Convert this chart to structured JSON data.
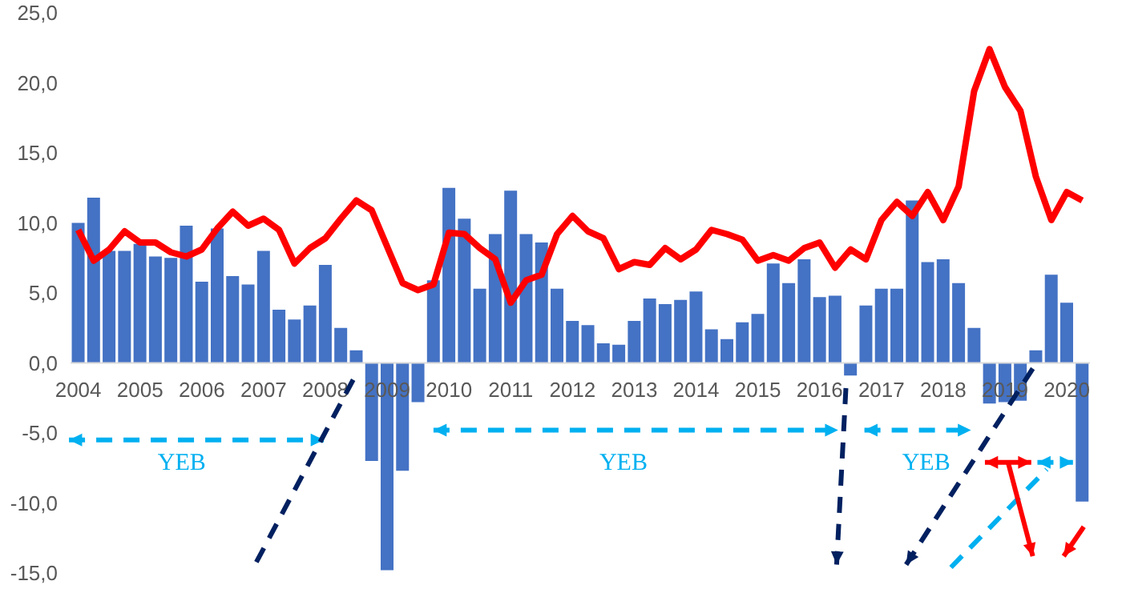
{
  "chart_data": {
    "type": "bar",
    "categories": [
      "2004",
      null,
      null,
      null,
      "2005",
      null,
      null,
      null,
      "2006",
      null,
      null,
      null,
      "2007",
      null,
      null,
      null,
      "2008",
      null,
      null,
      null,
      "2009",
      null,
      null,
      null,
      "2010",
      null,
      null,
      null,
      "2011",
      null,
      null,
      null,
      "2012",
      null,
      null,
      null,
      "2013",
      null,
      null,
      null,
      "2014",
      null,
      null,
      null,
      "2015",
      null,
      null,
      null,
      "2016",
      null,
      null,
      null,
      "2017",
      null,
      null,
      null,
      "2018",
      null,
      null,
      null,
      "2019",
      null,
      null,
      null,
      "2020",
      null
    ],
    "series": [
      {
        "color": "#4472c4",
        "values": [
          10.0,
          11.8,
          8.0,
          8.0,
          8.5,
          7.6,
          7.5,
          9.8,
          5.8,
          9.6,
          6.2,
          5.6,
          8.0,
          3.8,
          3.1,
          4.1,
          7.0,
          2.5,
          0.9,
          -7.0,
          -14.8,
          -7.7,
          -2.8,
          5.9,
          12.5,
          10.3,
          5.3,
          9.2,
          12.3,
          9.2,
          8.6,
          5.3,
          3.0,
          2.7,
          1.4,
          1.3,
          3.0,
          4.6,
          4.2,
          4.5,
          5.1,
          2.4,
          1.7,
          2.9,
          3.5,
          7.1,
          5.7,
          7.4,
          4.7,
          4.8,
          -0.9,
          4.1,
          5.3,
          5.3,
          11.6,
          7.2,
          7.4,
          5.7,
          2.5,
          -2.9,
          -2.8,
          -2.7,
          0.9,
          6.3,
          4.3,
          -9.9
        ]
      },
      {
        "type": "line",
        "color": "#ff0000",
        "values": [
          9.5,
          7.3,
          8.1,
          9.4,
          8.6,
          8.6,
          7.9,
          7.6,
          8.1,
          9.6,
          10.8,
          9.8,
          10.3,
          9.5,
          7.1,
          8.2,
          8.9,
          10.3,
          11.6,
          10.9,
          8.3,
          5.7,
          5.2,
          5.6,
          9.3,
          9.2,
          8.2,
          7.4,
          4.3,
          5.9,
          6.3,
          9.2,
          10.5,
          9.4,
          8.9,
          6.7,
          7.2,
          7.0,
          8.2,
          7.4,
          8.1,
          9.5,
          9.2,
          8.8,
          7.3,
          7.7,
          7.3,
          8.2,
          8.6,
          6.8,
          8.1,
          7.4,
          10.2,
          11.5,
          10.5,
          12.2,
          10.2,
          12.6,
          19.4,
          22.4,
          19.7,
          18.0,
          13.3,
          10.2,
          12.2,
          11.6
        ]
      }
    ],
    "ylim": [
      -15,
      25
    ],
    "yticks": [
      {
        "value": -15,
        "label": "-15,0"
      },
      {
        "value": -10,
        "label": "-10,0"
      },
      {
        "value": -5,
        "label": "-5,0"
      },
      {
        "value": 0,
        "label": "0,0"
      },
      {
        "value": 5,
        "label": "5,0"
      },
      {
        "value": 10,
        "label": "10,0"
      },
      {
        "value": 15,
        "label": "15,0"
      },
      {
        "value": 20,
        "label": "20,0"
      },
      {
        "value": 25,
        "label": "25,0"
      }
    ],
    "annotations": [
      "YEB",
      "YEB",
      "YEB"
    ]
  }
}
